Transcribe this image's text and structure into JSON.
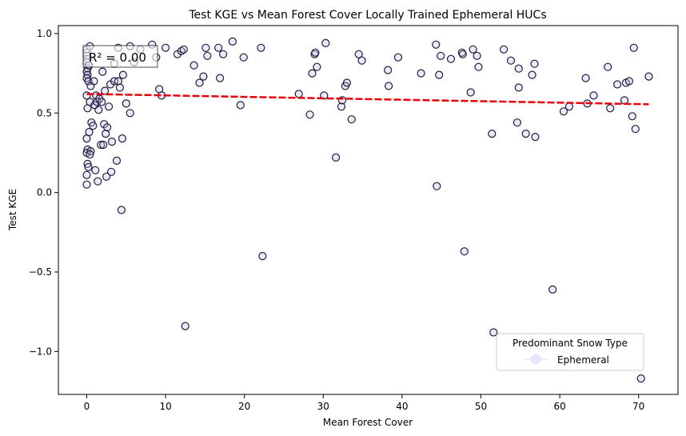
{
  "chart_data": {
    "type": "scatter",
    "title": "Test KGE vs Mean Forest Cover Locally Trained Ephemeral HUCs",
    "xlabel": "Mean Forest Cover",
    "ylabel": "Test KGE",
    "xlim": [
      -3.6,
      75.0
    ],
    "ylim": [
      -1.27,
      1.05
    ],
    "xticks": [
      0,
      10,
      20,
      30,
      40,
      50,
      60,
      70
    ],
    "yticks": [
      -1.0,
      -0.5,
      0.0,
      0.5,
      1.0
    ],
    "xtick_labels": [
      "0",
      "10",
      "20",
      "30",
      "40",
      "50",
      "60",
      "70"
    ],
    "ytick_labels": [
      "−1.0",
      "−0.5",
      "0.0",
      "0.5",
      "1.0"
    ],
    "grid": false,
    "annotation": "R² = 0.00",
    "legend": {
      "title": "Predominant Snow Type",
      "entries": [
        "Ephemeral"
      ],
      "placement": "lower-right"
    },
    "colors": {
      "marker_face": "#b8b8e8",
      "marker_edge": "#1e1e3c",
      "trend": "#e8000b",
      "legend_marker": "#e6e6fa"
    },
    "trend_line": {
      "x": [
        0,
        71.3
      ],
      "y": [
        0.62,
        0.555
      ]
    },
    "series": [
      {
        "name": "Ephemeral",
        "points": [
          [
            0.0,
            0.9
          ],
          [
            0.0,
            0.88
          ],
          [
            0.0,
            0.86
          ],
          [
            0.1,
            0.84
          ],
          [
            0.0,
            0.82
          ],
          [
            0.2,
            0.8
          ],
          [
            0.1,
            0.78
          ],
          [
            0.0,
            0.76
          ],
          [
            0.1,
            0.74
          ],
          [
            0.0,
            0.72
          ],
          [
            0.2,
            0.7
          ],
          [
            0.0,
            0.61
          ],
          [
            0.1,
            0.53
          ],
          [
            0.0,
            0.34
          ],
          [
            0.1,
            0.27
          ],
          [
            0.0,
            0.25
          ],
          [
            0.1,
            0.18
          ],
          [
            0.2,
            0.16
          ],
          [
            0.0,
            0.11
          ],
          [
            0.0,
            0.05
          ],
          [
            0.4,
            0.92
          ],
          [
            0.3,
            0.8
          ],
          [
            0.5,
            0.67
          ],
          [
            0.4,
            0.57
          ],
          [
            0.3,
            0.38
          ],
          [
            0.6,
            0.44
          ],
          [
            0.5,
            0.26
          ],
          [
            0.4,
            0.24
          ],
          [
            0.9,
            0.7
          ],
          [
            0.8,
            0.42
          ],
          [
            1.0,
            0.55
          ],
          [
            1.2,
            0.61
          ],
          [
            1.1,
            0.14
          ],
          [
            1.3,
            0.57
          ],
          [
            1.5,
            0.52
          ],
          [
            1.4,
            0.07
          ],
          [
            1.6,
            0.59
          ],
          [
            1.8,
            0.3
          ],
          [
            1.9,
            0.57
          ],
          [
            2.0,
            0.76
          ],
          [
            2.1,
            0.3
          ],
          [
            2.3,
            0.64
          ],
          [
            2.2,
            0.43
          ],
          [
            2.4,
            0.37
          ],
          [
            2.6,
            0.41
          ],
          [
            2.5,
            0.1
          ],
          [
            2.8,
            0.54
          ],
          [
            3.0,
            0.68
          ],
          [
            3.2,
            0.32
          ],
          [
            3.1,
            0.13
          ],
          [
            3.5,
            0.7
          ],
          [
            3.8,
            0.2
          ],
          [
            4.0,
            0.7
          ],
          [
            4.2,
            0.66
          ],
          [
            4.5,
            0.34
          ],
          [
            4.6,
            0.74
          ],
          [
            4.4,
            -0.11
          ],
          [
            5.0,
            0.56
          ],
          [
            5.5,
            0.5
          ],
          [
            3.5,
            0.81
          ],
          [
            4.0,
            0.91
          ],
          [
            5.5,
            0.92
          ],
          [
            6.0,
            0.82
          ],
          [
            6.8,
            0.9
          ],
          [
            8.3,
            0.93
          ],
          [
            8.8,
            0.85
          ],
          [
            9.2,
            0.65
          ],
          [
            9.5,
            0.61
          ],
          [
            10.0,
            0.91
          ],
          [
            11.5,
            0.87
          ],
          [
            12.0,
            0.89
          ],
          [
            12.3,
            0.9
          ],
          [
            12.5,
            -0.84
          ],
          [
            13.6,
            0.8
          ],
          [
            14.3,
            0.69
          ],
          [
            14.8,
            0.73
          ],
          [
            15.1,
            0.91
          ],
          [
            15.3,
            0.86
          ],
          [
            16.7,
            0.91
          ],
          [
            16.9,
            0.72
          ],
          [
            17.3,
            0.87
          ],
          [
            18.5,
            0.95
          ],
          [
            19.5,
            0.55
          ],
          [
            19.9,
            0.85
          ],
          [
            22.1,
            0.91
          ],
          [
            22.3,
            -0.4
          ],
          [
            26.9,
            0.62
          ],
          [
            28.3,
            0.49
          ],
          [
            28.6,
            0.75
          ],
          [
            28.9,
            0.87
          ],
          [
            29.0,
            0.88
          ],
          [
            29.2,
            0.79
          ],
          [
            30.1,
            0.61
          ],
          [
            30.3,
            0.94
          ],
          [
            31.6,
            0.22
          ],
          [
            32.3,
            0.54
          ],
          [
            32.4,
            0.58
          ],
          [
            32.8,
            0.67
          ],
          [
            33.0,
            0.69
          ],
          [
            33.6,
            0.46
          ],
          [
            34.5,
            0.87
          ],
          [
            34.9,
            0.83
          ],
          [
            38.2,
            0.77
          ],
          [
            38.3,
            0.67
          ],
          [
            39.5,
            0.85
          ],
          [
            42.4,
            0.75
          ],
          [
            44.3,
            0.93
          ],
          [
            44.4,
            0.04
          ],
          [
            44.7,
            0.74
          ],
          [
            44.9,
            0.86
          ],
          [
            46.2,
            0.84
          ],
          [
            47.6,
            0.88
          ],
          [
            47.7,
            0.87
          ],
          [
            47.9,
            -0.37
          ],
          [
            48.7,
            0.63
          ],
          [
            49.0,
            0.9
          ],
          [
            49.5,
            0.86
          ],
          [
            49.7,
            0.79
          ],
          [
            51.4,
            0.37
          ],
          [
            51.6,
            -0.88
          ],
          [
            52.9,
            0.9
          ],
          [
            53.8,
            0.83
          ],
          [
            54.6,
            0.44
          ],
          [
            54.8,
            0.78
          ],
          [
            54.8,
            0.66
          ],
          [
            55.7,
            0.37
          ],
          [
            56.5,
            0.74
          ],
          [
            56.8,
            0.81
          ],
          [
            56.9,
            0.35
          ],
          [
            59.1,
            -0.61
          ],
          [
            60.5,
            0.51
          ],
          [
            61.2,
            0.54
          ],
          [
            63.3,
            0.72
          ],
          [
            63.5,
            0.56
          ],
          [
            64.3,
            0.61
          ],
          [
            66.1,
            0.79
          ],
          [
            66.4,
            0.53
          ],
          [
            67.3,
            0.68
          ],
          [
            68.2,
            0.58
          ],
          [
            68.4,
            0.69
          ],
          [
            68.8,
            0.7
          ],
          [
            69.2,
            0.48
          ],
          [
            69.4,
            0.91
          ],
          [
            69.6,
            0.4
          ],
          [
            70.3,
            -1.17
          ],
          [
            71.3,
            0.73
          ]
        ]
      }
    ]
  }
}
